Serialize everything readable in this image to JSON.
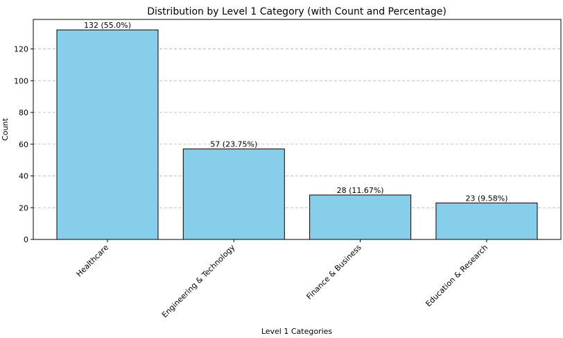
{
  "chart_data": {
    "type": "bar",
    "title": "Distribution by Level 1 Category (with Count and Percentage)",
    "xlabel": "Level 1 Categories",
    "ylabel": "Count",
    "categories": [
      "Healthcare",
      "Engineering & Technology",
      "Finance & Business",
      "Education & Research"
    ],
    "values": [
      132,
      57,
      28,
      23
    ],
    "data_labels": [
      "132 (55.0%)",
      "57 (23.75%)",
      "28 (11.67%)",
      "23 (9.58%)"
    ],
    "ylim": [
      0,
      138.6
    ],
    "yticks": [
      0,
      20,
      40,
      60,
      80,
      100,
      120
    ],
    "grid": "y-dashed",
    "bar_color": "#87ceeb",
    "bar_edge_color": "#000000"
  }
}
